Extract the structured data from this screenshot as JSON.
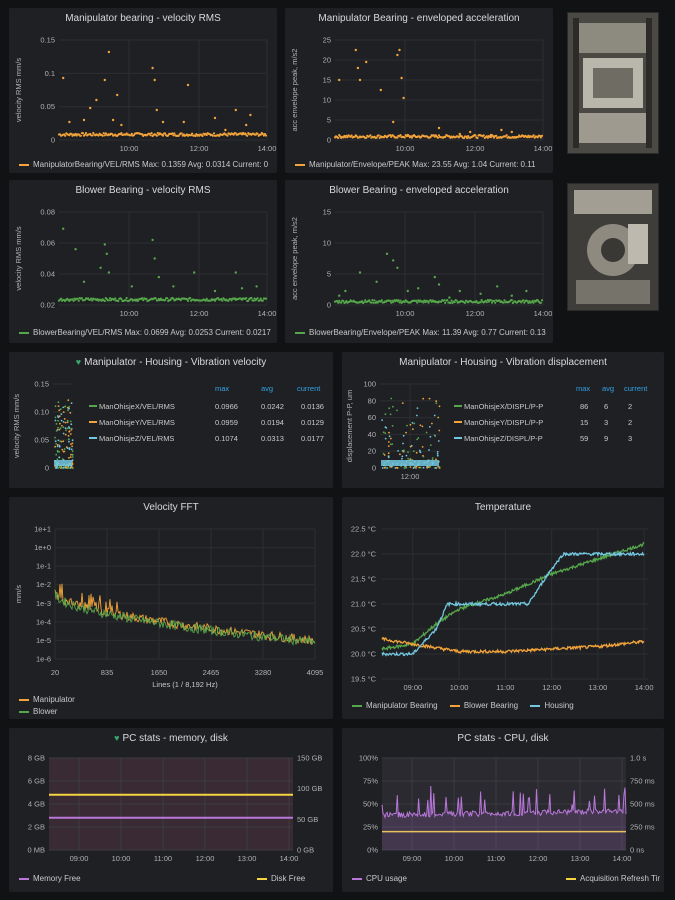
{
  "colors": {
    "orange": "#f2a43a",
    "green": "#56a64b",
    "cyan": "#73c8e0",
    "purple": "#b877d9",
    "yellow": "#f5d440",
    "heart": "#3aa76d",
    "header_blue": "#33a2e5"
  },
  "panels": {
    "p1": {
      "title": "Manipulator bearing - velocity RMS",
      "ylabel": "velocity RMS mm/s",
      "yticks": [
        "0.15",
        "0.1",
        "0.05",
        "0"
      ],
      "xticks": [
        "10:00",
        "12:00",
        "14:00"
      ],
      "legend": "ManipulatorBearing/VEL/RMS   Max: 0.1359   Avg: 0.0314   Current: 0"
    },
    "p2": {
      "title": "Manipulator Bearing - enveloped acceleration",
      "ylabel": "acc envelope peak, m/s2",
      "yticks": [
        "25",
        "20",
        "15",
        "10",
        "5",
        "0"
      ],
      "xticks": [
        "10:00",
        "12:00",
        "14:00"
      ],
      "legend": "Manipulator/Envelope/PEAK   Max: 23.55   Avg: 1.04   Current: 0.11"
    },
    "p3": {
      "title": "Blower Bearing - velocity RMS",
      "ylabel": "velocity RMS mm/s",
      "yticks": [
        "0.08",
        "0.06",
        "0.04",
        "0.02"
      ],
      "xticks": [
        "10:00",
        "12:00",
        "14:00"
      ],
      "legend": "BlowerBearing/VEL/RMS   Max: 0.0699   Avg: 0.0253   Current: 0.0217"
    },
    "p4": {
      "title": "Blower Bearing - enveloped acceleration",
      "ylabel": "acc envelope peak, m/s2",
      "yticks": [
        "15",
        "10",
        "5",
        "0"
      ],
      "xticks": [
        "10:00",
        "12:00",
        "14:00"
      ],
      "legend": "BlowerBearing/Envelope/PEAK   Max: 11.39   Avg: 0.77   Current: 0.13"
    },
    "p5": {
      "title": "Manipulator - Housing - Vibration velocity",
      "ylabel": "velocity RMS mm/s",
      "yticks": [
        "0.15",
        "0.10",
        "0.05",
        "0"
      ],
      "table": {
        "headers": [
          "max",
          "avg",
          "current"
        ],
        "rows": [
          {
            "name": "ManOhisjeX/VEL/RMS",
            "max": "0.0966",
            "avg": "0.0242",
            "current": "0.0136"
          },
          {
            "name": "ManOhisjeY/VEL/RMS",
            "max": "0.0959",
            "avg": "0.0194",
            "current": "0.0129"
          },
          {
            "name": "ManOhisjeZ/VEL/RMS",
            "max": "0.1074",
            "avg": "0.0313",
            "current": "0.0177"
          }
        ]
      }
    },
    "p6": {
      "title": "Manipulator - Housing - Vibration displacement",
      "ylabel": "displacement P-P, um",
      "yticks": [
        "100",
        "80",
        "60",
        "40",
        "20",
        "0"
      ],
      "xticks": [
        "12:00"
      ],
      "table": {
        "headers": [
          "max",
          "avg",
          "current"
        ],
        "rows": [
          {
            "name": "ManOhisjeX/DISPL/P-P",
            "max": "86",
            "avg": "6",
            "current": "2"
          },
          {
            "name": "ManOhisjeY/DISPL/P-P",
            "max": "15",
            "avg": "3",
            "current": "2"
          },
          {
            "name": "ManOhisjeZ/DISPL/P-P",
            "max": "59",
            "avg": "9",
            "current": "3"
          }
        ]
      }
    },
    "p7": {
      "title": "Velocity FFT",
      "ylabel": "mm/s",
      "yticks": [
        "1e+1",
        "1e+0",
        "1e-1",
        "1e-2",
        "1e-3",
        "1e-4",
        "1e-5",
        "1e-6"
      ],
      "xticks": [
        "20",
        "835",
        "1650",
        "2465",
        "3280",
        "4095"
      ],
      "xlabel": "Lines (1 / 8,192 Hz)",
      "legend": [
        "Manipulator",
        "Blower"
      ]
    },
    "p8": {
      "title": "Temperature",
      "yticks": [
        "22.5 °C",
        "22.0 °C",
        "21.5 °C",
        "21.0 °C",
        "20.5 °C",
        "20.0 °C",
        "19.5 °C"
      ],
      "xticks": [
        "09:00",
        "10:00",
        "11:00",
        "12:00",
        "13:00",
        "14:00"
      ],
      "legend": [
        "Manipulator Bearing",
        "Blower Bearing",
        "Housing"
      ]
    },
    "p9": {
      "title": "PC stats - memory, disk",
      "yticks_left": [
        "8 GB",
        "6 GB",
        "4 GB",
        "2 GB",
        "0 MB"
      ],
      "yticks_right": [
        "150 GB",
        "100 GB",
        "50 GB",
        "0 GB"
      ],
      "xticks": [
        "09:00",
        "10:00",
        "11:00",
        "12:00",
        "13:00",
        "14:00"
      ],
      "legend": [
        "Memory Free",
        "Disk Free"
      ]
    },
    "p10": {
      "title": "PC stats - CPU, disk",
      "yticks_left": [
        "100%",
        "75%",
        "50%",
        "25%",
        "0%"
      ],
      "yticks_right": [
        "1.0 s",
        "750 ms",
        "500 ms",
        "250 ms",
        "0 ns"
      ],
      "xticks": [
        "09:00",
        "10:00",
        "11:00",
        "12:00",
        "13:00",
        "14:00"
      ],
      "legend": [
        "CPU usage",
        "Acquisition Refresh Time"
      ]
    }
  },
  "chart_data": [
    {
      "type": "scatter",
      "title": "Manipulator bearing - velocity RMS",
      "ylabel": "velocity RMS mm/s",
      "ylim": [
        0,
        0.15
      ],
      "x_range": [
        "08:00",
        "14:00"
      ],
      "series": [
        {
          "name": "ManipulatorBearing/VEL/RMS",
          "baseline": 0.025,
          "max": 0.1359,
          "avg": 0.0314
        }
      ]
    },
    {
      "type": "scatter",
      "title": "Manipulator Bearing - enveloped acceleration",
      "ylabel": "acc envelope peak, m/s2",
      "ylim": [
        0,
        25
      ],
      "series": [
        {
          "name": "Manipulator/Envelope/PEAK",
          "baseline": 0.5,
          "max": 23.55,
          "avg": 1.04
        }
      ]
    },
    {
      "type": "scatter",
      "title": "Blower Bearing - velocity RMS",
      "ylabel": "velocity RMS mm/s",
      "ylim": [
        0.02,
        0.08
      ],
      "series": [
        {
          "name": "BlowerBearing/VEL/RMS",
          "baseline": 0.022,
          "max": 0.0699,
          "avg": 0.0253
        }
      ]
    },
    {
      "type": "scatter",
      "title": "Blower Bearing - enveloped acceleration",
      "ylabel": "acc envelope peak, m/s2",
      "ylim": [
        0,
        15
      ],
      "series": [
        {
          "name": "BlowerBearing/Envelope/PEAK",
          "baseline": 0.3,
          "max": 11.39,
          "avg": 0.77
        }
      ]
    },
    {
      "type": "line",
      "title": "Velocity FFT",
      "ylabel": "mm/s",
      "xlabel": "Lines (1 / 8,192 Hz)",
      "log_y": true,
      "ylim": [
        1e-06,
        10
      ],
      "xlim": [
        20,
        4095
      ],
      "series": [
        {
          "name": "Manipulator",
          "start": 0.003,
          "end": 1e-05
        },
        {
          "name": "Blower",
          "start": 0.004,
          "end": 1e-05
        }
      ]
    },
    {
      "type": "line",
      "title": "Temperature",
      "ylim": [
        19.5,
        22.5
      ],
      "series": [
        {
          "name": "Manipulator Bearing",
          "x": [
            "08:20",
            "09:00",
            "09:30",
            "10:00",
            "11:00",
            "12:00",
            "13:00",
            "14:00"
          ],
          "y": [
            20.1,
            20.2,
            20.6,
            20.9,
            21.2,
            21.6,
            21.9,
            22.2
          ]
        },
        {
          "name": "Blower Bearing",
          "x": [
            "08:20",
            "09:00",
            "10:00",
            "11:00",
            "12:00",
            "13:00",
            "14:00"
          ],
          "y": [
            20.3,
            20.2,
            20.05,
            20.05,
            20.1,
            20.15,
            20.25
          ]
        },
        {
          "name": "Housing",
          "x": [
            "08:20",
            "09:00",
            "09:30",
            "09:45",
            "11:30",
            "11:55",
            "12:15",
            "14:00"
          ],
          "y": [
            20.0,
            20.0,
            20.5,
            21.0,
            21.0,
            21.6,
            22.0,
            22.0
          ]
        }
      ]
    },
    {
      "type": "line",
      "title": "PC stats - memory, disk",
      "series": [
        {
          "name": "Memory Free",
          "value_gb": 2.8
        },
        {
          "name": "Disk Free",
          "value_gb": 90
        }
      ]
    },
    {
      "type": "line",
      "title": "PC stats - CPU, disk",
      "series": [
        {
          "name": "CPU usage",
          "baseline_pct": 38
        },
        {
          "name": "Acquisition Refresh Time",
          "value_ms": 200
        }
      ]
    }
  ]
}
